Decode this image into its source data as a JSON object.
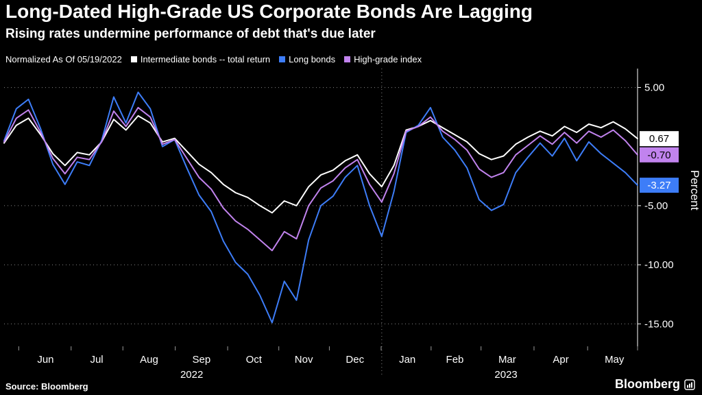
{
  "title": "Long-Dated High-Grade US Corporate Bonds Are Lagging",
  "subtitle": "Rising rates undermine performance of debt that's due later",
  "legend": {
    "prefix": "Normalized As Of 05/19/2022",
    "items": [
      {
        "label": "Intermediate bonds -- total return",
        "color": "#FFFFFF"
      },
      {
        "label": "Long bonds",
        "color": "#3D7DF8"
      },
      {
        "label": "High-grade index",
        "color": "#C183EE"
      }
    ]
  },
  "source": "Source: Bloomberg",
  "brand": "Bloomberg",
  "chart_data": {
    "type": "line",
    "title": "Long-Dated High-Grade US Corporate Bonds Are Lagging",
    "subtitle": "Rising rates undermine performance of debt that's due later",
    "ylabel": "Percent",
    "x_unit": "weeks since 2022-05-19",
    "ylim": [
      -16.9,
      6.6
    ],
    "yticks": [
      5,
      -5,
      -10,
      -15
    ],
    "ytick_labels": [
      "5.00",
      "-5.00",
      "-10.00",
      "-15.00"
    ],
    "grid": "dotted-horizontal",
    "legend_position": "top",
    "x": [
      0,
      1,
      2,
      3,
      4,
      5,
      6,
      7,
      8,
      9,
      10,
      11,
      12,
      13,
      14,
      15,
      16,
      17,
      18,
      19,
      20,
      21,
      22,
      23,
      24,
      25,
      26,
      27,
      28,
      29,
      30,
      31,
      32,
      33,
      34,
      35,
      36,
      37,
      38,
      39,
      40,
      41,
      42,
      43,
      44,
      45,
      46,
      47,
      48,
      49,
      50,
      51,
      52
    ],
    "xticks": [
      {
        "label": "Jun",
        "pos": 3.4
      },
      {
        "label": "Jul",
        "pos": 7.6
      },
      {
        "label": "Aug",
        "pos": 11.9
      },
      {
        "label": "Sep",
        "pos": 16.2
      },
      {
        "label": "Oct",
        "pos": 20.5
      },
      {
        "label": "Nov",
        "pos": 24.6
      },
      {
        "label": "Dec",
        "pos": 28.8
      },
      {
        "label": "Jan",
        "pos": 33.1
      },
      {
        "label": "Feb",
        "pos": 37.0
      },
      {
        "label": "Mar",
        "pos": 41.3
      },
      {
        "label": "Apr",
        "pos": 45.7
      },
      {
        "label": "May",
        "pos": 50.1
      }
    ],
    "year_labels": [
      {
        "label": "2022",
        "pos": 15.4
      },
      {
        "label": "2023",
        "pos": 41.2
      }
    ],
    "year_divider_pos": 31,
    "series": [
      {
        "name": "Intermediate bonds -- total return",
        "color": "#FFFFFF",
        "last_label": "0.67",
        "badge_bg": "#FFFFFF",
        "badge_fg": "#000000",
        "values": [
          0.3,
          1.8,
          2.4,
          1.0,
          -0.6,
          -1.6,
          -0.5,
          -0.7,
          0.4,
          2.3,
          1.4,
          2.6,
          2.0,
          0.4,
          0.7,
          -0.4,
          -1.5,
          -2.2,
          -3.2,
          -3.9,
          -4.3,
          -5.0,
          -5.6,
          -4.6,
          -5.0,
          -3.4,
          -2.4,
          -2.0,
          -1.2,
          -0.7,
          -2.3,
          -3.4,
          -1.6,
          1.4,
          1.7,
          2.2,
          1.6,
          1.0,
          0.4,
          -0.6,
          -1.1,
          -0.8,
          0.2,
          0.8,
          1.3,
          0.9,
          1.7,
          1.2,
          1.9,
          1.6,
          2.1,
          1.5,
          0.67
        ]
      },
      {
        "name": "Long bonds",
        "color": "#3D7DF8",
        "last_label": "-3.27",
        "badge_bg": "#3D7DF8",
        "badge_fg": "#FFFFFF",
        "values": [
          0.5,
          3.2,
          4.0,
          1.5,
          -1.5,
          -3.2,
          -1.3,
          -1.6,
          0.5,
          4.2,
          2.0,
          4.6,
          3.2,
          0.0,
          0.6,
          -1.8,
          -4.1,
          -5.5,
          -8.0,
          -9.8,
          -10.8,
          -12.6,
          -14.9,
          -11.4,
          -13.0,
          -7.9,
          -5.0,
          -4.2,
          -2.6,
          -1.6,
          -5.0,
          -7.6,
          -3.8,
          1.2,
          1.8,
          3.3,
          0.8,
          -0.3,
          -1.8,
          -4.5,
          -5.4,
          -4.9,
          -2.2,
          -0.9,
          0.3,
          -0.8,
          0.7,
          -1.2,
          0.4,
          -0.6,
          -1.4,
          -2.2,
          -3.27
        ]
      },
      {
        "name": "High-grade index",
        "color": "#C183EE",
        "last_label": "-0.70",
        "badge_bg": "#C183EE",
        "badge_fg": "#000000",
        "values": [
          0.4,
          2.4,
          3.1,
          1.2,
          -1.0,
          -2.3,
          -0.9,
          -1.1,
          0.4,
          3.0,
          1.7,
          3.3,
          2.5,
          0.2,
          0.6,
          -1.0,
          -2.6,
          -3.6,
          -5.2,
          -6.3,
          -7.0,
          -7.9,
          -8.8,
          -7.2,
          -7.8,
          -5.0,
          -3.5,
          -2.9,
          -1.8,
          -1.1,
          -3.2,
          -4.7,
          -2.3,
          1.3,
          1.7,
          2.5,
          1.3,
          0.6,
          -0.3,
          -1.9,
          -2.6,
          -2.2,
          -0.7,
          0.1,
          0.9,
          0.2,
          1.2,
          0.3,
          1.3,
          0.8,
          1.4,
          0.5,
          -0.7
        ]
      }
    ]
  }
}
